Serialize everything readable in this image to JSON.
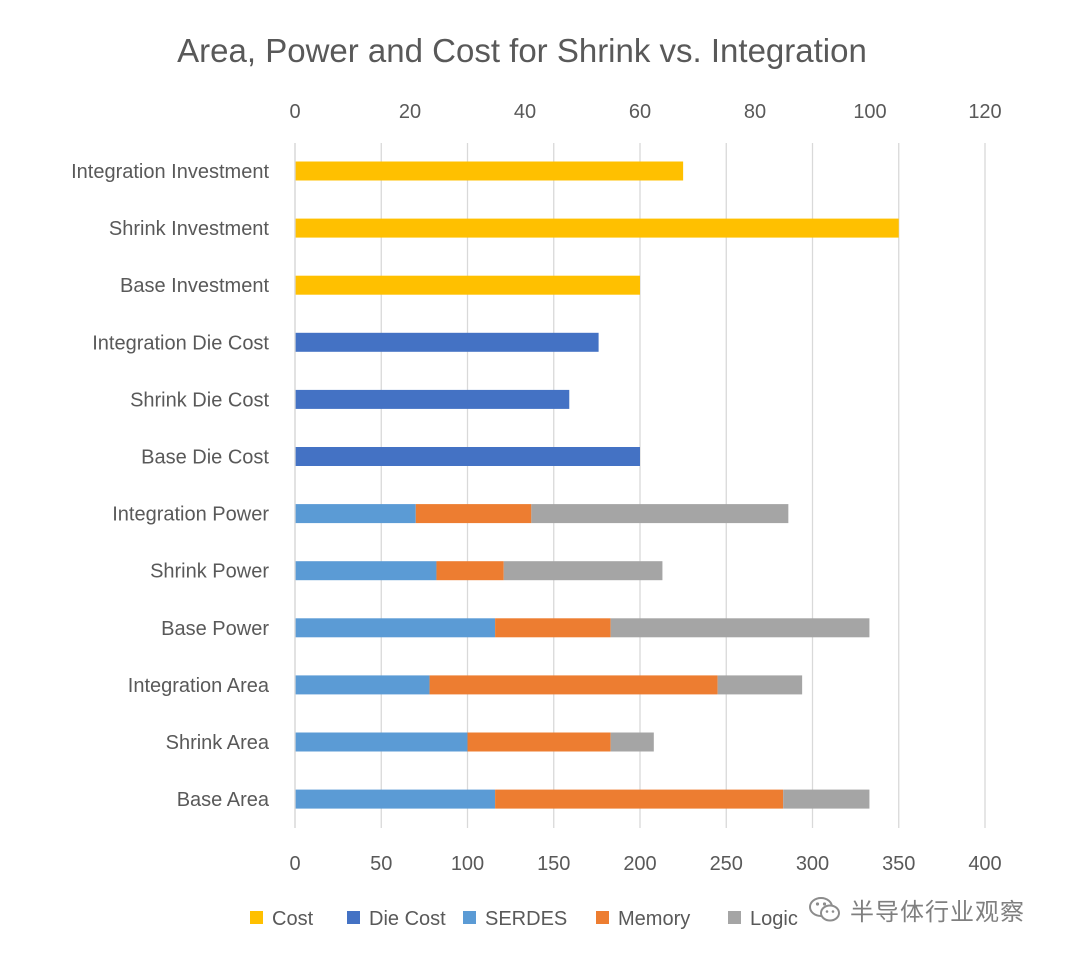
{
  "chart_data": {
    "type": "bar",
    "orientation": "horizontal",
    "stacked": true,
    "title": "Area, Power and Cost for Shrink vs. Integration",
    "categories": [
      "Integration Investment",
      "Shrink Investment",
      "Base Investment",
      "Integration Die Cost",
      "Shrink Die Cost",
      "Base Die Cost",
      "Integration Power",
      "Shrink Power",
      "Base Power",
      "Integration Area",
      "Shrink Area",
      "Base Area"
    ],
    "primary_axis": {
      "position": "bottom",
      "min": 0,
      "max": 400,
      "step": 50,
      "ticks": [
        "0",
        "50",
        "100",
        "150",
        "200",
        "250",
        "300",
        "350",
        "400"
      ]
    },
    "secondary_axis": {
      "position": "top",
      "min": 0,
      "max": 120,
      "step": 20,
      "ticks": [
        "0",
        "20",
        "40",
        "60",
        "80",
        "100",
        "120"
      ]
    },
    "series": [
      {
        "name": "Cost",
        "color": "#FFC000",
        "axis": "secondary",
        "values": [
          67.5,
          105,
          60,
          null,
          null,
          null,
          null,
          null,
          null,
          null,
          null,
          null
        ]
      },
      {
        "name": "Die Cost",
        "color": "#4472C4",
        "axis": "primary",
        "values": [
          null,
          null,
          null,
          176,
          159,
          200,
          null,
          null,
          null,
          null,
          null,
          null
        ]
      },
      {
        "name": "SERDES",
        "color": "#5B9BD5",
        "axis": "primary",
        "values": [
          null,
          null,
          null,
          null,
          null,
          null,
          70,
          82,
          116,
          78,
          100,
          116
        ]
      },
      {
        "name": "Memory",
        "color": "#ED7D31",
        "axis": "primary",
        "values": [
          null,
          null,
          null,
          null,
          null,
          null,
          67,
          39,
          67,
          167,
          83,
          167
        ]
      },
      {
        "name": "Logic",
        "color": "#A5A5A5",
        "axis": "primary",
        "values": [
          null,
          null,
          null,
          null,
          null,
          null,
          149,
          92,
          150,
          49,
          25,
          50
        ]
      }
    ],
    "grid": true,
    "legend_position": "bottom"
  },
  "watermark": {
    "text": "半导体行业观察",
    "icon": "wechat-icon"
  }
}
